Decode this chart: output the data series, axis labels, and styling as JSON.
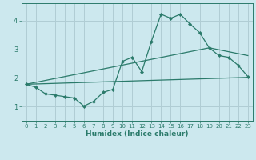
{
  "xlabel": "Humidex (Indice chaleur)",
  "bg_color": "#cce8ee",
  "grid_color": "#b0cdd4",
  "line_color": "#2a7a6a",
  "xlim": [
    -0.5,
    23.5
  ],
  "ylim": [
    0.5,
    4.6
  ],
  "xticks": [
    0,
    1,
    2,
    3,
    4,
    5,
    6,
    7,
    8,
    9,
    10,
    11,
    12,
    13,
    14,
    15,
    16,
    17,
    18,
    19,
    20,
    21,
    22,
    23
  ],
  "yticks": [
    1,
    2,
    3,
    4
  ],
  "curve1_x": [
    0,
    1,
    2,
    3,
    4,
    5,
    6,
    7,
    8,
    9,
    10,
    11,
    12,
    13,
    14,
    15,
    16,
    17,
    18,
    19,
    20,
    21,
    22,
    23
  ],
  "curve1_y": [
    1.78,
    1.68,
    1.45,
    1.4,
    1.35,
    1.3,
    1.02,
    1.18,
    1.5,
    1.6,
    2.58,
    2.72,
    2.22,
    3.28,
    4.22,
    4.08,
    4.22,
    3.88,
    3.58,
    3.05,
    2.78,
    2.72,
    2.44,
    2.05
  ],
  "curve2_x": [
    0,
    23
  ],
  "curve2_y": [
    1.78,
    2.02
  ],
  "curve3_x": [
    0,
    19,
    23
  ],
  "curve3_y": [
    1.78,
    3.05,
    2.78
  ]
}
